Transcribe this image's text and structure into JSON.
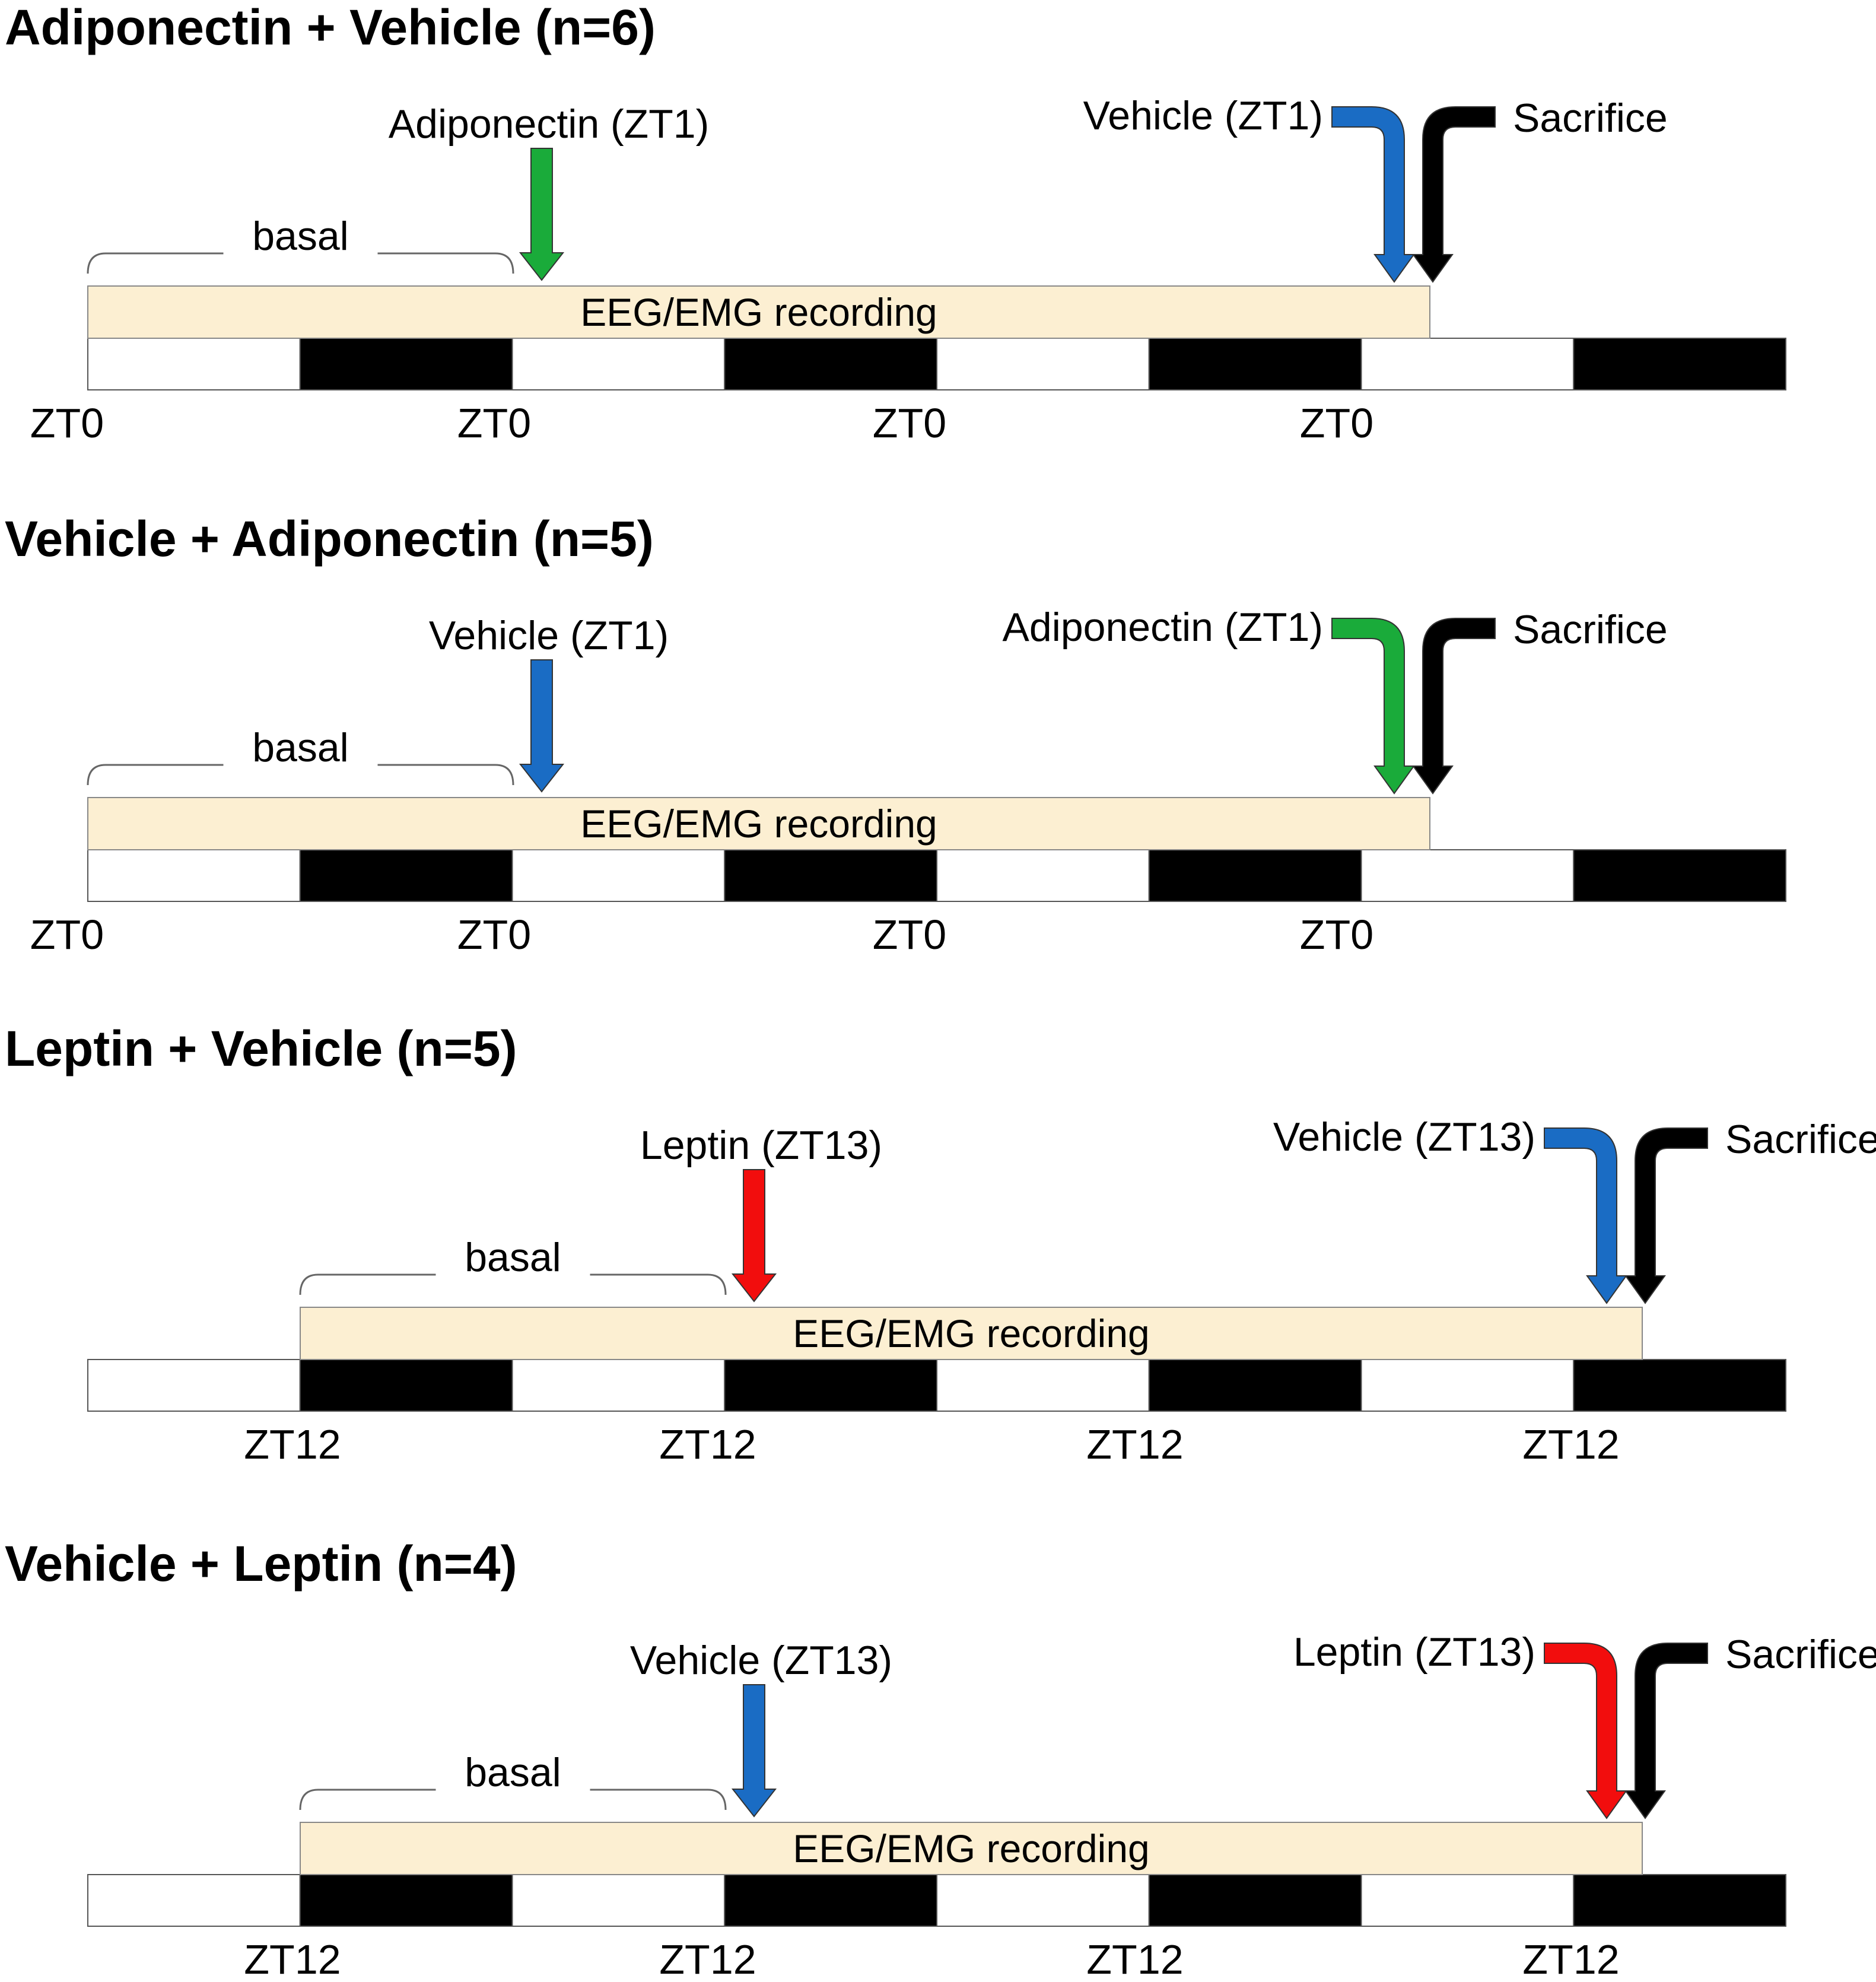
{
  "colors": {
    "green": "#1aab3a",
    "blue": "#1a6cc4",
    "red": "#f20d0d",
    "black": "#000000",
    "recording_fill": "#fcefd2",
    "light_block": "#ffffff",
    "dark_block": "#000000"
  },
  "panels": [
    {
      "title": "Adiponectin + Vehicle (n=6)",
      "basal_label": "basal",
      "recording_label": "EEG/EMG recording",
      "first_injection": {
        "label": "Adiponectin (ZT1)",
        "color": "green"
      },
      "second_injection": {
        "label": "Vehicle (ZT1)",
        "color": "blue"
      },
      "sacrifice_label": "Sacrifice",
      "light_dark_pattern": [
        "light",
        "dark",
        "light",
        "dark",
        "light",
        "dark",
        "light",
        "dark"
      ],
      "tick_labels": [
        "ZT0",
        "ZT0",
        "ZT0",
        "ZT0"
      ]
    },
    {
      "title": "Vehicle + Adiponectin (n=5)",
      "basal_label": "basal",
      "recording_label": "EEG/EMG recording",
      "first_injection": {
        "label": "Vehicle (ZT1)",
        "color": "blue"
      },
      "second_injection": {
        "label": "Adiponectin (ZT1)",
        "color": "green"
      },
      "sacrifice_label": "Sacrifice",
      "light_dark_pattern": [
        "light",
        "dark",
        "light",
        "dark",
        "light",
        "dark",
        "light",
        "dark"
      ],
      "tick_labels": [
        "ZT0",
        "ZT0",
        "ZT0",
        "ZT0"
      ]
    },
    {
      "title": "Leptin + Vehicle (n=5)",
      "basal_label": "basal",
      "recording_label": "EEG/EMG recording",
      "first_injection": {
        "label": "Leptin (ZT13)",
        "color": "red"
      },
      "second_injection": {
        "label": "Vehicle (ZT13)",
        "color": "blue"
      },
      "sacrifice_label": "Sacrifice",
      "light_dark_pattern": [
        "light",
        "dark",
        "light",
        "dark",
        "light",
        "dark",
        "light",
        "dark"
      ],
      "tick_labels": [
        "ZT12",
        "ZT12",
        "ZT12",
        "ZT12"
      ]
    },
    {
      "title": "Vehicle + Leptin (n=4)",
      "basal_label": "basal",
      "recording_label": "EEG/EMG recording",
      "first_injection": {
        "label": "Vehicle (ZT13)",
        "color": "blue"
      },
      "second_injection": {
        "label": "Leptin (ZT13)",
        "color": "red"
      },
      "sacrifice_label": "Sacrifice",
      "light_dark_pattern": [
        "light",
        "dark",
        "light",
        "dark",
        "light",
        "dark",
        "light",
        "dark"
      ],
      "tick_labels": [
        "ZT12",
        "ZT12",
        "ZT12",
        "ZT12"
      ]
    }
  ]
}
